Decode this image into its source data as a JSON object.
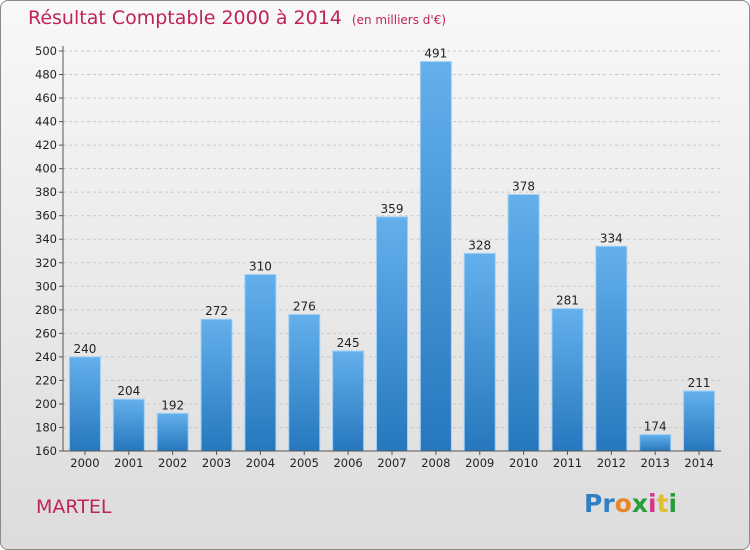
{
  "title": "Résultat Comptable 2000 à 2014",
  "unit": "(en milliers d'€)",
  "commune": "MARTEL",
  "logo": {
    "letters": [
      "P",
      "r",
      "o",
      "x",
      "i",
      "t",
      "i"
    ],
    "colors": [
      "#2e7fc4",
      "#2e7fc4",
      "#e9862b",
      "#2a9d3b",
      "#d6338a",
      "#e2bf2d",
      "#2a9d3b"
    ]
  },
  "chart_data": {
    "type": "bar",
    "title": "Résultat Comptable 2000 à 2014",
    "ylabel": "",
    "xlabel": "",
    "categories": [
      "2000",
      "2001",
      "2002",
      "2003",
      "2004",
      "2005",
      "2006",
      "2007",
      "2008",
      "2009",
      "2010",
      "2011",
      "2012",
      "2013",
      "2014"
    ],
    "values": [
      240,
      204,
      192,
      272,
      310,
      276,
      245,
      359,
      491,
      328,
      378,
      281,
      334,
      174,
      211
    ],
    "ylim": [
      160,
      500
    ],
    "yticks": [
      160,
      180,
      200,
      220,
      240,
      260,
      280,
      300,
      320,
      340,
      360,
      380,
      400,
      420,
      440,
      460,
      480,
      500
    ],
    "grid": true,
    "bar_color": "#3a8fd6"
  }
}
